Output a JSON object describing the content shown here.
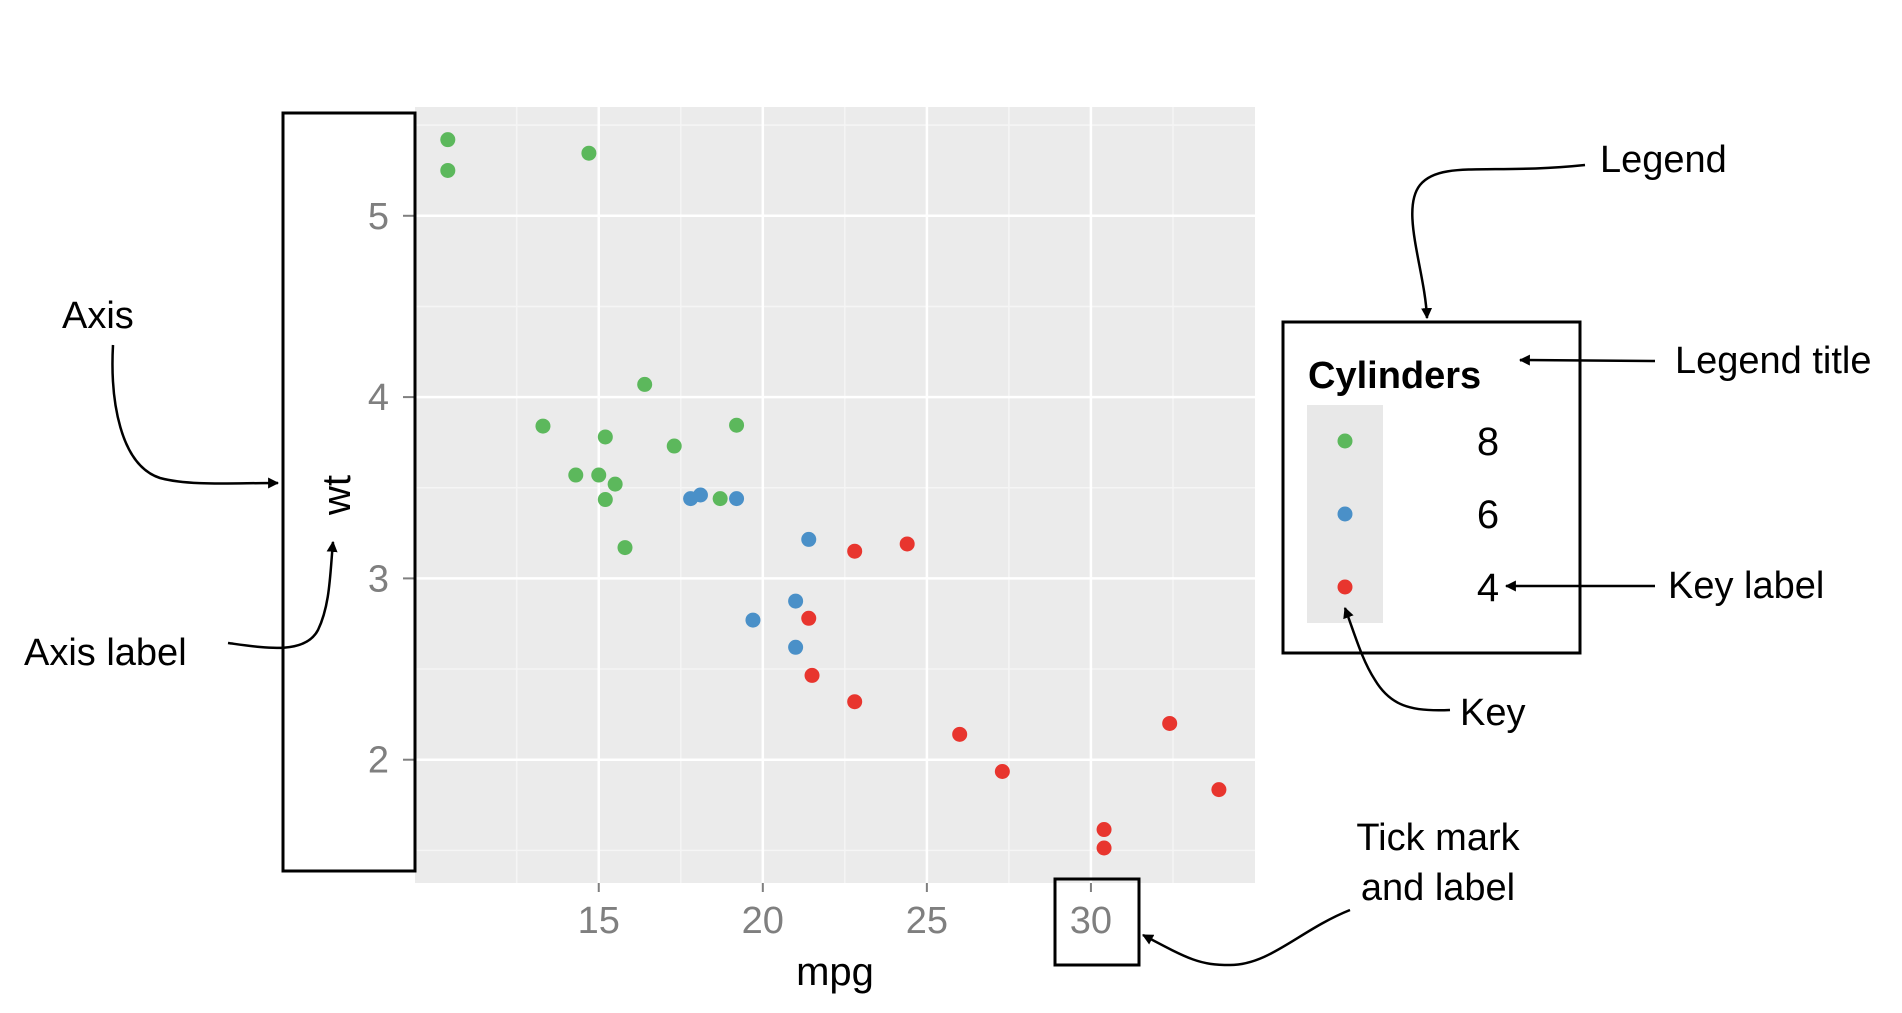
{
  "chart_data": {
    "type": "scatter",
    "title": "",
    "xlabel": "mpg",
    "ylabel": "wt",
    "xlim": [
      9.4,
      35.0
    ],
    "ylim": [
      1.32,
      5.6
    ],
    "x_ticks": [
      15,
      20,
      25,
      30
    ],
    "y_ticks": [
      2,
      3,
      4,
      5
    ],
    "grid": true,
    "legend": {
      "title": "Cylinders",
      "placement": "right",
      "entries": [
        "8",
        "6",
        "4"
      ]
    },
    "series": [
      {
        "name": "8",
        "color": "#5cb85c",
        "points": [
          [
            10.4,
            5.25
          ],
          [
            10.4,
            5.42
          ],
          [
            14.7,
            5.345
          ],
          [
            13.3,
            3.84
          ],
          [
            14.3,
            3.57
          ],
          [
            15.0,
            3.57
          ],
          [
            15.2,
            3.435
          ],
          [
            15.5,
            3.52
          ],
          [
            15.2,
            3.78
          ],
          [
            16.4,
            4.07
          ],
          [
            17.3,
            3.73
          ],
          [
            15.8,
            3.17
          ],
          [
            18.7,
            3.44
          ],
          [
            19.2,
            3.845
          ]
        ]
      },
      {
        "name": "6",
        "color": "#4a90c8",
        "points": [
          [
            17.8,
            3.44
          ],
          [
            18.1,
            3.46
          ],
          [
            19.2,
            3.44
          ],
          [
            21.4,
            3.215
          ],
          [
            21.0,
            2.875
          ],
          [
            21.0,
            2.62
          ],
          [
            19.7,
            2.77
          ]
        ]
      },
      {
        "name": "4",
        "color": "#e8352e",
        "points": [
          [
            22.8,
            3.15
          ],
          [
            24.4,
            3.19
          ],
          [
            21.4,
            2.78
          ],
          [
            21.5,
            2.465
          ],
          [
            22.8,
            2.32
          ],
          [
            26.0,
            2.14
          ],
          [
            27.3,
            1.935
          ],
          [
            30.4,
            1.615
          ],
          [
            30.4,
            1.513
          ],
          [
            32.4,
            2.2
          ],
          [
            33.9,
            1.835
          ]
        ]
      }
    ]
  },
  "annotations": {
    "legend": "Legend",
    "axis": "Axis",
    "legend_title": "Legend title",
    "axis_label": "Axis label",
    "key_label": "Key label",
    "key": "Key",
    "tick_mark_line1": "Tick mark",
    "tick_mark_line2": "and label"
  }
}
